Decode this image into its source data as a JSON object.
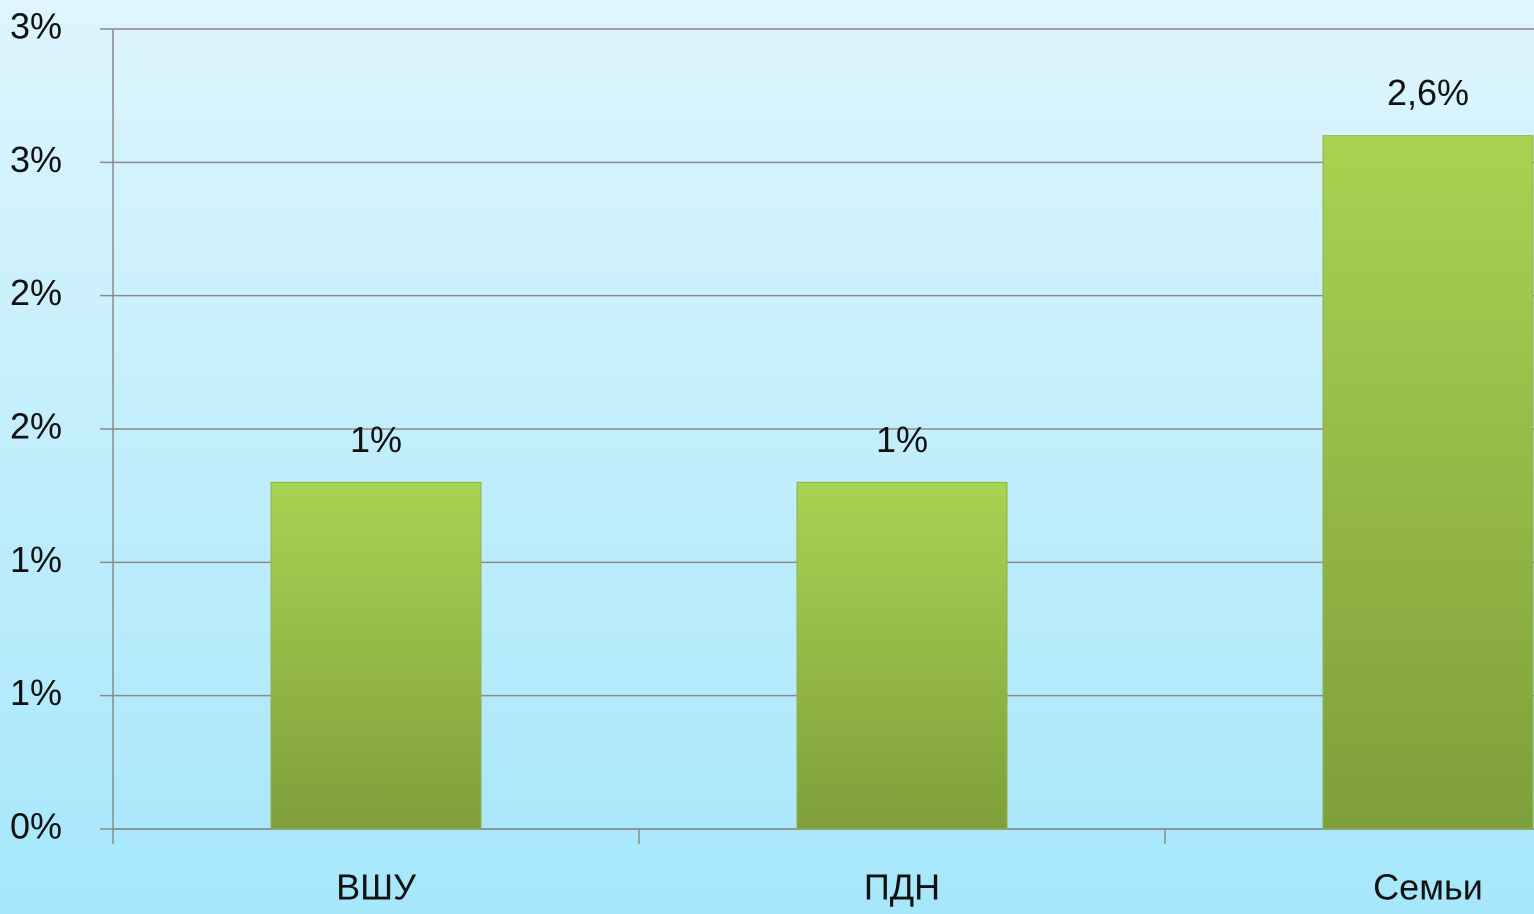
{
  "chart_data": {
    "type": "bar",
    "categories": [
      "ВШУ",
      "ПДН",
      "Семьи"
    ],
    "values": [
      1.3,
      1.3,
      2.6
    ],
    "value_labels": [
      "1%",
      "1%",
      "2,6%"
    ],
    "color": "#98bf45",
    "ylim": [
      0,
      3
    ],
    "yticks": [
      {
        "value": 0,
        "label": "0%"
      },
      {
        "value": 0.5,
        "label": "1%"
      },
      {
        "value": 1,
        "label": "1%"
      },
      {
        "value": 1.5,
        "label": "2%"
      },
      {
        "value": 2,
        "label": "2%"
      },
      {
        "value": 2.5,
        "label": "3%"
      },
      {
        "value": 3,
        "label": "3%"
      }
    ],
    "grid": true
  }
}
